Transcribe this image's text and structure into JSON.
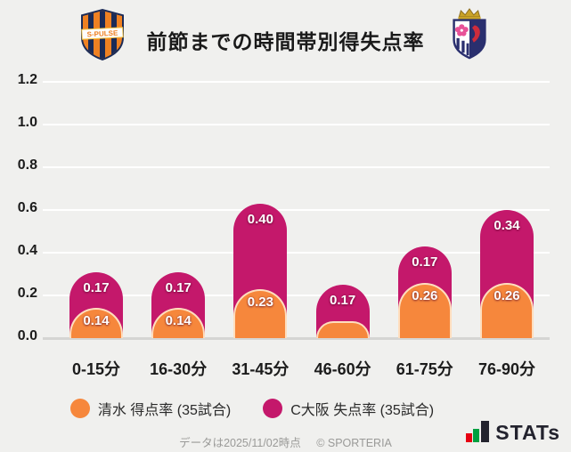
{
  "header": {
    "title": "前節までの時間帯別得失点率"
  },
  "chart_data": {
    "type": "bar",
    "variant": "stacked-rounded-top",
    "title": "前節までの時間帯別得失点率",
    "categories": [
      "0-15分",
      "16-30分",
      "31-45分",
      "46-60分",
      "61-75分",
      "76-90分"
    ],
    "series": [
      {
        "name": "清水 得点率 (35試合)",
        "color": "#F6873C",
        "values": [
          0.14,
          0.14,
          0.23,
          0.08,
          0.26,
          0.26
        ],
        "labels": [
          "0.14",
          "0.14",
          "0.23",
          "",
          "0.26",
          "0.26"
        ]
      },
      {
        "name": "C大阪 失点率 (35試合)",
        "color": "#C4186B",
        "values": [
          0.17,
          0.17,
          0.4,
          0.17,
          0.17,
          0.34
        ],
        "labels": [
          "0.17",
          "0.17",
          "0.40",
          "0.17",
          "0.17",
          "0.34"
        ]
      }
    ],
    "stacked": true,
    "yticks": [
      0,
      0.2,
      0.4,
      0.6,
      0.8,
      1.0,
      1.2
    ],
    "ylim": [
      0,
      1.2
    ],
    "xlabel": "",
    "ylabel": "",
    "grid": true,
    "legend_position": "bottom"
  },
  "legend": {
    "items": [
      {
        "label": "清水 得点率 (35試合)",
        "color": "#F6873C"
      },
      {
        "label": "C大阪 失点率 (35試合)",
        "color": "#C4186B"
      }
    ]
  },
  "footer": {
    "data_note": "データは2025/11/02時点",
    "copyright": "© SPORTERIA",
    "stats_logo_text": "STATs"
  },
  "colors": {
    "background": "#F0F0EE",
    "orange": "#F6873C",
    "magenta": "#C4186B",
    "gridline": "#FFFFFF",
    "baseline": "#D5D5D3",
    "text_dark": "#1C1C1C",
    "footer_gray": "#9A9A98"
  }
}
